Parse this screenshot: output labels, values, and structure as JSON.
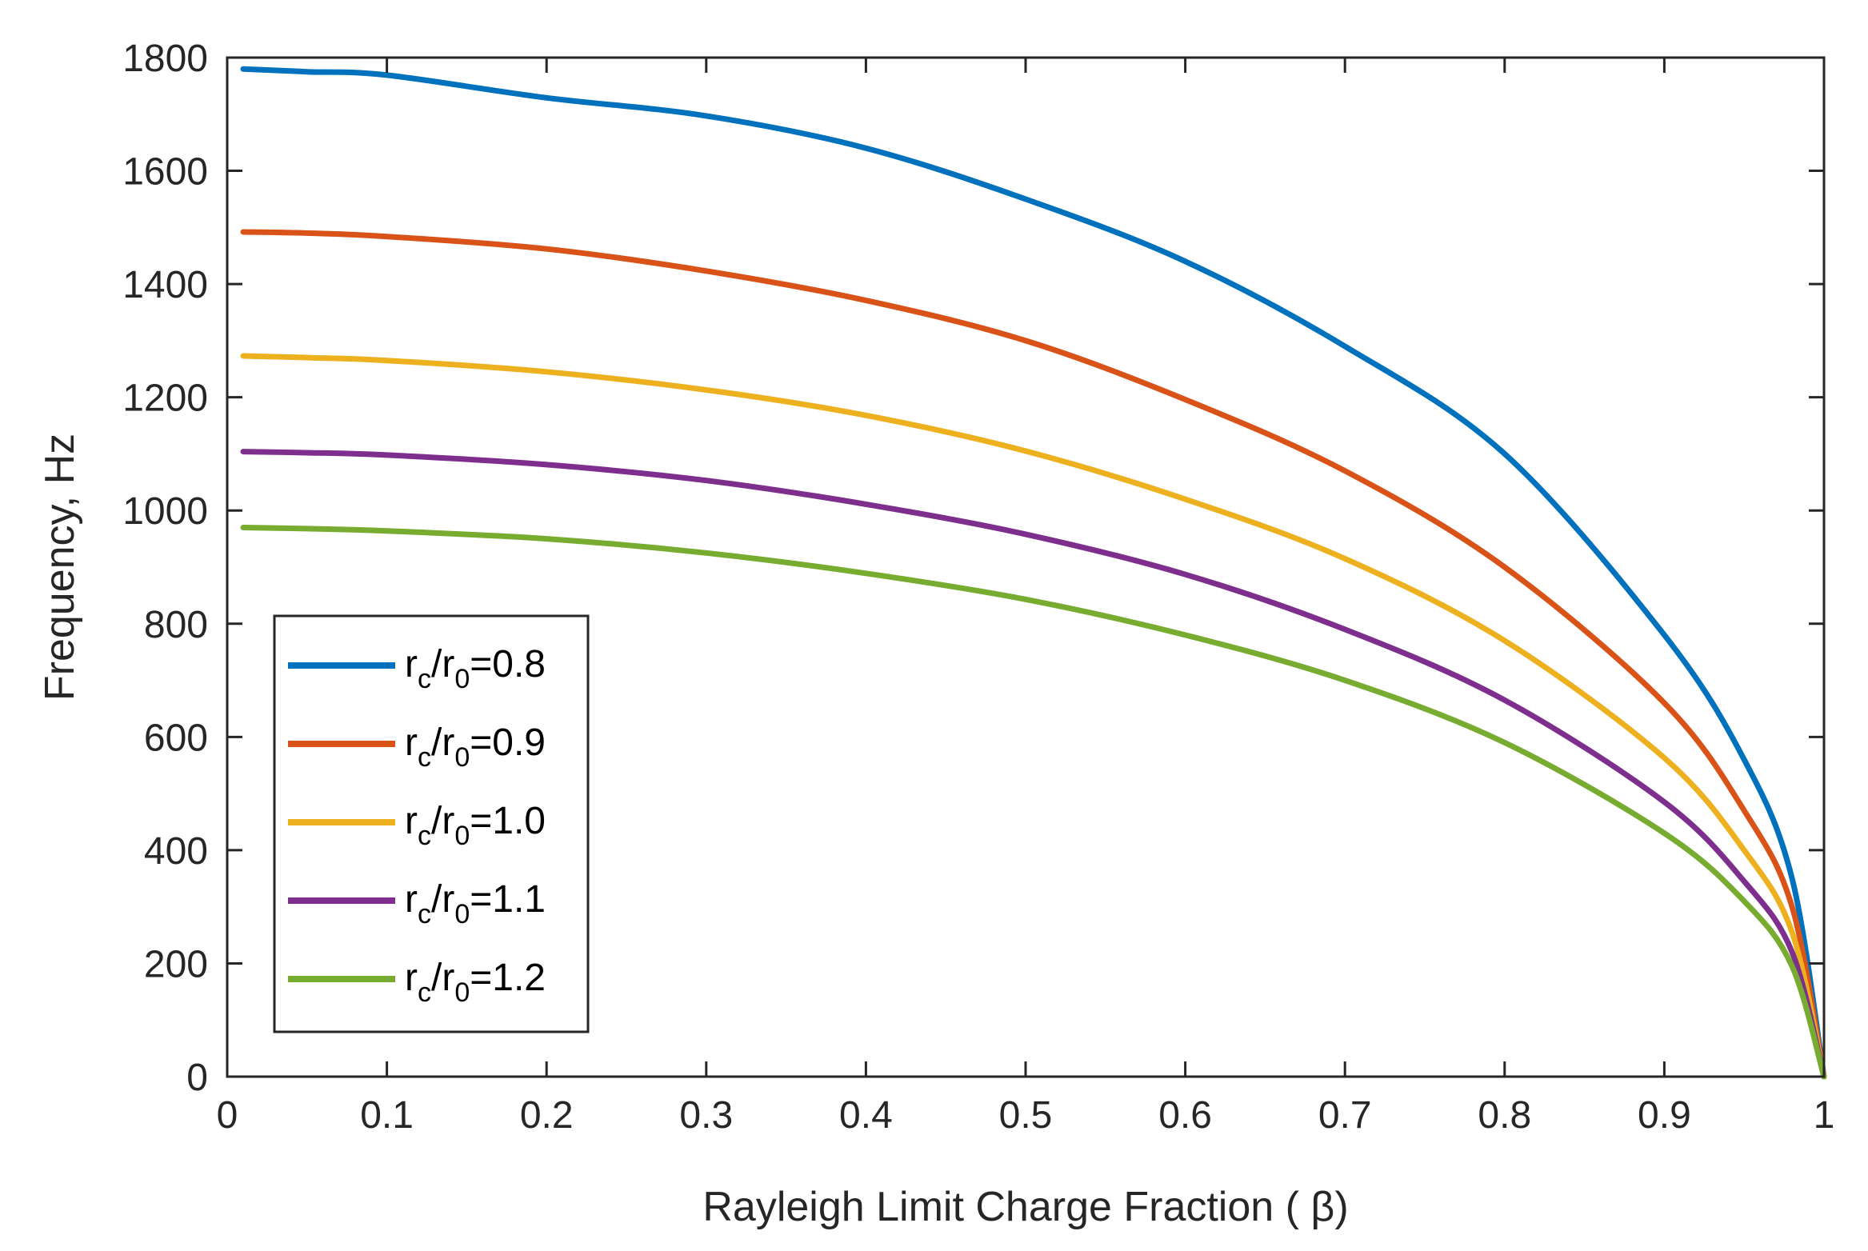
{
  "chart_data": {
    "type": "line",
    "title": "",
    "xlabel": "Rayleigh Limit Charge Fraction ( β)",
    "ylabel": "Frequency, Hz",
    "xlim": [
      0,
      1
    ],
    "ylim": [
      0,
      1800
    ],
    "xticks": [
      "0",
      "0.1",
      "0.2",
      "0.3",
      "0.4",
      "0.5",
      "0.6",
      "0.7",
      "0.8",
      "0.9",
      "1"
    ],
    "yticks": [
      "0",
      "200",
      "400",
      "600",
      "800",
      "1000",
      "1200",
      "1400",
      "1600",
      "1800"
    ],
    "grid": false,
    "legend_position": "bottom-left",
    "x": [
      0.01,
      0.05,
      0.1,
      0.2,
      0.3,
      0.4,
      0.5,
      0.6,
      0.7,
      0.8,
      0.9,
      0.95,
      0.98,
      1.0
    ],
    "series": [
      {
        "name": "r_c/r_0=0.8",
        "label_main": "r",
        "label_sub1": "c",
        "label_mid": "/r",
        "label_sub2": "0",
        "label_value": "=0.8",
        "color": "#0072BD",
        "values": [
          1780,
          1775,
          1769,
          1729,
          1697,
          1640,
          1550,
          1440,
          1290,
          1100,
          780,
          560,
          350,
          0
        ]
      },
      {
        "name": "r_c/r_0=0.9",
        "label_main": "r",
        "label_sub1": "c",
        "label_mid": "/r",
        "label_sub2": "0",
        "label_value": "=0.9",
        "color": "#D95319",
        "values": [
          1492,
          1490,
          1484,
          1462,
          1423,
          1371,
          1300,
          1196,
          1070,
          900,
          660,
          470,
          300,
          0
        ]
      },
      {
        "name": "r_c/r_0=1.0",
        "label_main": "r",
        "label_sub1": "c",
        "label_mid": "/r",
        "label_sub2": "0",
        "label_value": "=1.0",
        "color": "#EDB120",
        "values": [
          1273,
          1270,
          1265,
          1245,
          1213,
          1168,
          1105,
          1020,
          915,
          770,
          563,
          400,
          255,
          0
        ]
      },
      {
        "name": "r_c/r_0=1.1",
        "label_main": "r",
        "label_sub1": "c",
        "label_mid": "/r",
        "label_sub2": "0",
        "label_value": "=1.1",
        "color": "#7E2F8E",
        "values": [
          1104,
          1102,
          1098,
          1081,
          1053,
          1011,
          958,
          887,
          790,
          665,
          485,
          345,
          220,
          0
        ]
      },
      {
        "name": "r_c/r_0=1.2",
        "label_main": "r",
        "label_sub1": "c",
        "label_mid": "/r",
        "label_sub2": "0",
        "label_value": "=1.2",
        "color": "#77AC30",
        "values": [
          970,
          968,
          964,
          950,
          925,
          889,
          843,
          780,
          700,
          590,
          430,
          310,
          195,
          0
        ]
      }
    ]
  }
}
